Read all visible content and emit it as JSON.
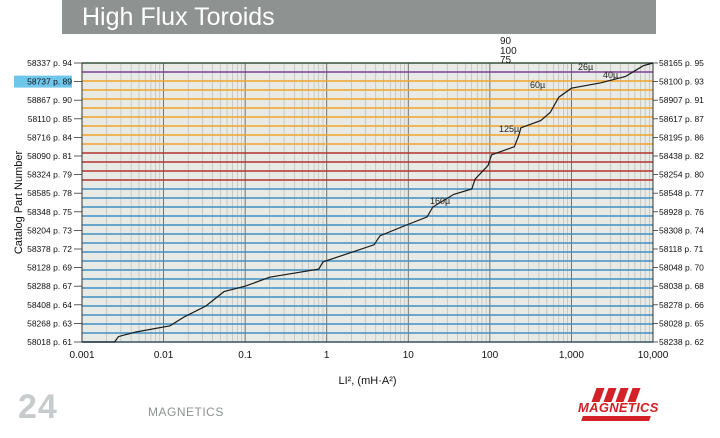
{
  "header": {
    "title": "High Flux Toroids"
  },
  "footer": {
    "page_number": "24",
    "brand": "MAGNETICS",
    "logo_text": "MAGNETICS"
  },
  "colors": {
    "header_bg": "#8e9291",
    "plot_bg": "#e8ebe5",
    "curve": "#1a1a1a",
    "highlight_label_bg": "#6ec6ea",
    "logo_red": "#d42027",
    "band_colors": {
      "green": "#3d8a4e",
      "purple": "#7d3d96",
      "orange": "#f1a32a",
      "red": "#b3332c",
      "blue": "#3f8fc6"
    }
  },
  "chart_data": {
    "type": "line",
    "xlabel": "LI², (mH·A²)",
    "ylabel": "Catalog Part Number",
    "xscale": "log",
    "xlim": [
      0.001,
      10000
    ],
    "xticks": [
      0.001,
      0.01,
      0.1,
      1,
      10,
      100,
      1000,
      10000
    ],
    "xtick_labels": [
      "0.001",
      "0.01",
      "0.1",
      "1",
      "10",
      "100",
      "1,000",
      "10,000"
    ],
    "grid": true,
    "left_labels": [
      "58337 p. 94",
      "58737 p. 89",
      "58867 p. 90",
      "58110 p. 85",
      "58716 p. 84",
      "58090 p. 81",
      "58324 p. 79",
      "58585 p. 78",
      "58348 p. 75",
      "58204 p. 73",
      "58378 p. 72",
      "58128 p. 69",
      "58288 p. 67",
      "58408 p. 64",
      "58268 p. 63",
      "58018 p. 61"
    ],
    "highlighted_label": "58737 p. 89",
    "right_labels": [
      "58165 p. 95",
      "58100 p. 93",
      "58907 p. 91",
      "58617 p. 87",
      "58195 p. 86",
      "58438 p. 82",
      "58254 p. 80",
      "58548 p. 77",
      "58928 p. 76",
      "58308 p. 74",
      "58118 p. 71",
      "58048 p. 70",
      "58038 p. 68",
      "58278 p. 66",
      "58028 p. 65",
      "58238 p. 62"
    ],
    "bands": [
      {
        "color": "green",
        "levels": [
          0
        ]
      },
      {
        "color": "purple",
        "levels": [
          1
        ]
      },
      {
        "color": "orange",
        "levels": [
          2,
          3,
          4,
          5,
          6,
          7,
          8,
          9
        ]
      },
      {
        "color": "red",
        "levels": [
          10,
          11,
          12,
          13
        ]
      },
      {
        "color": "blue",
        "levels": [
          14,
          15,
          16,
          17,
          18,
          19,
          20,
          21,
          22,
          23,
          24,
          25,
          26,
          27,
          28,
          29,
          30,
          31
        ]
      }
    ],
    "curve": [
      [
        0.001,
        31
      ],
      [
        0.0025,
        31
      ],
      [
        0.0028,
        30.4
      ],
      [
        0.0045,
        29.9
      ],
      [
        0.012,
        29.2
      ],
      [
        0.018,
        28.2
      ],
      [
        0.033,
        27.0
      ],
      [
        0.055,
        25.4
      ],
      [
        0.1,
        24.8
      ],
      [
        0.2,
        23.8
      ],
      [
        0.8,
        22.9
      ],
      [
        0.9,
        22.1
      ],
      [
        3.8,
        20.2
      ],
      [
        4.5,
        19.2
      ],
      [
        9.5,
        18.0
      ],
      [
        17,
        17.1
      ],
      [
        20,
        16.0
      ],
      [
        36,
        14.6
      ],
      [
        60,
        14.0
      ],
      [
        66,
        12.9
      ],
      [
        95,
        11.4
      ],
      [
        105,
        10.2
      ],
      [
        200,
        9.3
      ],
      [
        225,
        8.1
      ],
      [
        240,
        7.2
      ],
      [
        420,
        6.4
      ],
      [
        550,
        5.5
      ],
      [
        700,
        3.8
      ],
      [
        1000,
        2.8
      ],
      [
        2300,
        2.2
      ],
      [
        4600,
        1.5
      ],
      [
        7600,
        0.3
      ],
      [
        10000,
        0
      ]
    ],
    "curve_labels": [
      "160µ",
      "125µ",
      "60µ",
      "26µ",
      "40µ"
    ],
    "top_labels": [
      "90",
      "100",
      "75"
    ]
  }
}
